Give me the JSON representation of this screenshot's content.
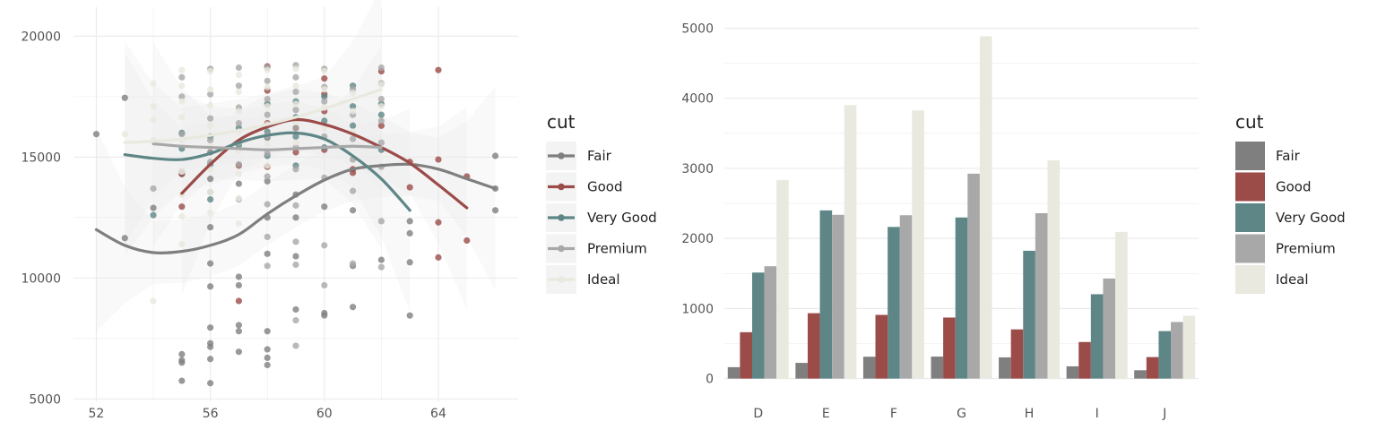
{
  "colors": {
    "Fair": "#7f7f7f",
    "Good": "#9b4b48",
    "Very Good": "#5f8686",
    "Premium": "#a8a8a8",
    "Ideal": "#e9e9df",
    "grid": "#ebebeb",
    "ribbon": "#e9e9e9"
  },
  "chart_data": [
    {
      "type": "scatter",
      "xlim": [
        51.2,
        66.8
      ],
      "ylim": [
        4900,
        21200
      ],
      "x_ticks": [
        "52",
        "56",
        "60",
        "64"
      ],
      "y_ticks": [
        "5000",
        "10000",
        "15000",
        "20000"
      ],
      "grid": true,
      "legend": {
        "title": "cut",
        "position": "right",
        "entries": [
          "Fair",
          "Good",
          "Very Good",
          "Premium",
          "Ideal"
        ]
      },
      "smooth": [
        {
          "name": "Fair",
          "x": [
            52,
            53,
            54,
            55,
            56,
            57,
            58,
            59,
            60,
            61,
            62,
            63,
            64,
            65,
            66
          ],
          "y": [
            12000,
            11350,
            11050,
            11100,
            11350,
            11800,
            12650,
            13400,
            14050,
            14500,
            14650,
            14700,
            14500,
            14100,
            13700
          ]
        },
        {
          "name": "Good",
          "x": [
            55,
            56,
            57,
            58,
            59,
            60,
            61,
            62,
            63,
            64,
            65
          ],
          "y": [
            13500,
            14700,
            15700,
            16250,
            16550,
            16350,
            15950,
            15400,
            14750,
            13850,
            12900
          ]
        },
        {
          "name": "Very Good",
          "x": [
            53,
            54,
            55,
            56,
            57,
            58,
            59,
            60,
            61,
            62,
            63
          ],
          "y": [
            15100,
            14950,
            14900,
            15150,
            15600,
            15900,
            16000,
            15750,
            15050,
            14100,
            12800
          ]
        },
        {
          "name": "Premium",
          "x": [
            54,
            55,
            56,
            57,
            58,
            59,
            60,
            61,
            62
          ],
          "y": [
            15550,
            15450,
            15400,
            15350,
            15300,
            15350,
            15400,
            15450,
            15400
          ]
        },
        {
          "name": "Ideal",
          "x": [
            53,
            54,
            55,
            56,
            57,
            58,
            59,
            60,
            61,
            62
          ],
          "y": [
            15600,
            15650,
            15750,
            15900,
            16100,
            16350,
            16650,
            17000,
            17400,
            17800
          ]
        }
      ],
      "points": {
        "Fair": [
          [
            52,
            15950
          ],
          [
            53,
            17450
          ],
          [
            53,
            11650
          ],
          [
            54,
            12900
          ],
          [
            55,
            6600
          ],
          [
            55,
            6850
          ],
          [
            55,
            6500
          ],
          [
            55,
            5750
          ],
          [
            55,
            14300
          ],
          [
            56,
            9650
          ],
          [
            56,
            10600
          ],
          [
            56,
            7950
          ],
          [
            56,
            7300
          ],
          [
            56,
            7150
          ],
          [
            56,
            6650
          ],
          [
            56,
            5650
          ],
          [
            56,
            12100
          ],
          [
            56,
            14100
          ],
          [
            56,
            15200
          ],
          [
            57,
            6950
          ],
          [
            57,
            7800
          ],
          [
            57,
            8050
          ],
          [
            57,
            9700
          ],
          [
            57,
            10050
          ],
          [
            57,
            13900
          ],
          [
            58,
            6400
          ],
          [
            58,
            6700
          ],
          [
            58,
            7050
          ],
          [
            58,
            7800
          ],
          [
            58,
            11000
          ],
          [
            58,
            12500
          ],
          [
            58,
            14000
          ],
          [
            58,
            15800
          ],
          [
            59,
            8700
          ],
          [
            59,
            10900
          ],
          [
            59,
            12500
          ],
          [
            59,
            13450
          ],
          [
            60,
            8450
          ],
          [
            60,
            8550
          ],
          [
            60,
            12950
          ],
          [
            61,
            8800
          ],
          [
            61,
            10500
          ],
          [
            61,
            12800
          ],
          [
            62,
            10750
          ],
          [
            63,
            8450
          ],
          [
            63,
            10650
          ],
          [
            63,
            11850
          ],
          [
            63,
            12350
          ],
          [
            66,
            12800
          ],
          [
            66,
            15050
          ],
          [
            66,
            13700
          ]
        ],
        "Good": [
          [
            55,
            12950
          ],
          [
            55,
            14300
          ],
          [
            57,
            9050
          ],
          [
            57,
            14650
          ],
          [
            58,
            18750
          ],
          [
            58,
            17750
          ],
          [
            58,
            16400
          ],
          [
            58,
            14600
          ],
          [
            59,
            16200
          ],
          [
            59,
            15200
          ],
          [
            60,
            18250
          ],
          [
            60,
            17600
          ],
          [
            60,
            16900
          ],
          [
            60,
            15300
          ],
          [
            61,
            14350
          ],
          [
            61,
            14500
          ],
          [
            62,
            18550
          ],
          [
            62,
            16300
          ],
          [
            63,
            13750
          ],
          [
            63,
            14800
          ],
          [
            64,
            18600
          ],
          [
            64,
            14900
          ],
          [
            64,
            12300
          ],
          [
            64,
            10850
          ],
          [
            65,
            14200
          ],
          [
            65,
            11550
          ]
        ],
        "Very Good": [
          [
            54,
            12600
          ],
          [
            55,
            15350
          ],
          [
            55,
            16000
          ],
          [
            56,
            15850
          ],
          [
            56,
            14700
          ],
          [
            56,
            13250
          ],
          [
            57,
            16200
          ],
          [
            57,
            15500
          ],
          [
            58,
            17200
          ],
          [
            58,
            16050
          ],
          [
            58,
            15050
          ],
          [
            59,
            17300
          ],
          [
            59,
            16650
          ],
          [
            59,
            15850
          ],
          [
            59,
            14650
          ],
          [
            60,
            17500
          ],
          [
            60,
            16500
          ],
          [
            60,
            15400
          ],
          [
            61,
            17950
          ],
          [
            61,
            17100
          ],
          [
            61,
            16300
          ],
          [
            62,
            17200
          ],
          [
            62,
            16750
          ],
          [
            62,
            15300
          ]
        ],
        "Premium": [
          [
            54,
            13700
          ],
          [
            55,
            18300
          ],
          [
            55,
            17500
          ],
          [
            55,
            15950
          ],
          [
            55,
            14400
          ],
          [
            56,
            18650
          ],
          [
            56,
            17600
          ],
          [
            56,
            16600
          ],
          [
            56,
            15700
          ],
          [
            56,
            14800
          ],
          [
            56,
            13550
          ],
          [
            57,
            18700
          ],
          [
            57,
            17950
          ],
          [
            57,
            17050
          ],
          [
            57,
            16400
          ],
          [
            57,
            15600
          ],
          [
            57,
            14700
          ],
          [
            57,
            13250
          ],
          [
            58,
            18700
          ],
          [
            58,
            18150
          ],
          [
            58,
            17400
          ],
          [
            58,
            16750
          ],
          [
            58,
            15900
          ],
          [
            58,
            15150
          ],
          [
            58,
            14200
          ],
          [
            58,
            13050
          ],
          [
            58,
            11700
          ],
          [
            58,
            10500
          ],
          [
            59,
            18800
          ],
          [
            59,
            18300
          ],
          [
            59,
            17700
          ],
          [
            59,
            16950
          ],
          [
            59,
            16200
          ],
          [
            59,
            15400
          ],
          [
            59,
            14500
          ],
          [
            59,
            13000
          ],
          [
            59,
            11500
          ],
          [
            59,
            10550
          ],
          [
            59,
            8250
          ],
          [
            59,
            7200
          ],
          [
            60,
            18650
          ],
          [
            60,
            17900
          ],
          [
            60,
            17300
          ],
          [
            60,
            15850
          ],
          [
            60,
            14150
          ],
          [
            60,
            11350
          ],
          [
            60,
            9700
          ],
          [
            61,
            17800
          ],
          [
            61,
            16750
          ],
          [
            61,
            15750
          ],
          [
            61,
            14900
          ],
          [
            61,
            13600
          ],
          [
            61,
            10600
          ],
          [
            62,
            18700
          ],
          [
            62,
            18050
          ],
          [
            62,
            17400
          ],
          [
            62,
            16500
          ],
          [
            62,
            15600
          ],
          [
            62,
            14600
          ],
          [
            62,
            12350
          ],
          [
            62,
            10450
          ]
        ],
        "Ideal": [
          [
            53,
            15950
          ],
          [
            54,
            18050
          ],
          [
            54,
            17100
          ],
          [
            54,
            16550
          ],
          [
            54,
            15700
          ],
          [
            54,
            9050
          ],
          [
            55,
            18600
          ],
          [
            55,
            17950
          ],
          [
            55,
            17300
          ],
          [
            55,
            16650
          ],
          [
            55,
            15700
          ],
          [
            55,
            14400
          ],
          [
            55,
            13450
          ],
          [
            55,
            12550
          ],
          [
            55,
            11400
          ],
          [
            56,
            18550
          ],
          [
            56,
            17800
          ],
          [
            56,
            17150
          ],
          [
            56,
            16300
          ],
          [
            56,
            15450
          ],
          [
            56,
            14500
          ],
          [
            56,
            13550
          ],
          [
            56,
            12700
          ],
          [
            57,
            18400
          ],
          [
            57,
            17700
          ],
          [
            57,
            16900
          ],
          [
            57,
            16050
          ],
          [
            57,
            15250
          ],
          [
            57,
            14300
          ],
          [
            57,
            13300
          ],
          [
            57,
            12250
          ],
          [
            58,
            18600
          ],
          [
            58,
            17900
          ],
          [
            58,
            17100
          ],
          [
            58,
            16350
          ],
          [
            58,
            15550
          ],
          [
            58,
            14650
          ],
          [
            59,
            18650
          ],
          [
            59,
            17950
          ],
          [
            59,
            17200
          ],
          [
            59,
            16450
          ],
          [
            59,
            15600
          ],
          [
            60,
            18550
          ],
          [
            60,
            17800
          ],
          [
            60,
            17050
          ],
          [
            60,
            16200
          ],
          [
            61,
            17650
          ],
          [
            61,
            16900
          ],
          [
            61,
            16050
          ],
          [
            62,
            18000
          ],
          [
            62,
            17100
          ]
        ]
      }
    },
    {
      "type": "bar",
      "categories": [
        "D",
        "E",
        "F",
        "G",
        "H",
        "I",
        "J"
      ],
      "ylim": [
        -120,
        5300
      ],
      "y_ticks": [
        "0",
        "1000",
        "2000",
        "3000",
        "4000",
        "5000"
      ],
      "grid": true,
      "legend": {
        "title": "cut",
        "position": "right",
        "entries": [
          "Fair",
          "Good",
          "Very Good",
          "Premium",
          "Ideal"
        ]
      },
      "series": [
        {
          "name": "Fair",
          "values": [
            163,
            224,
            312,
            314,
            303,
            175,
            119
          ]
        },
        {
          "name": "Good",
          "values": [
            662,
            933,
            909,
            871,
            702,
            522,
            307
          ]
        },
        {
          "name": "Very Good",
          "values": [
            1513,
            2400,
            2164,
            2299,
            1824,
            1204,
            678
          ]
        },
        {
          "name": "Premium",
          "values": [
            1603,
            2337,
            2331,
            2924,
            2360,
            1428,
            808
          ]
        },
        {
          "name": "Ideal",
          "values": [
            2834,
            3903,
            3826,
            4884,
            3115,
            2093,
            896
          ]
        }
      ]
    }
  ]
}
